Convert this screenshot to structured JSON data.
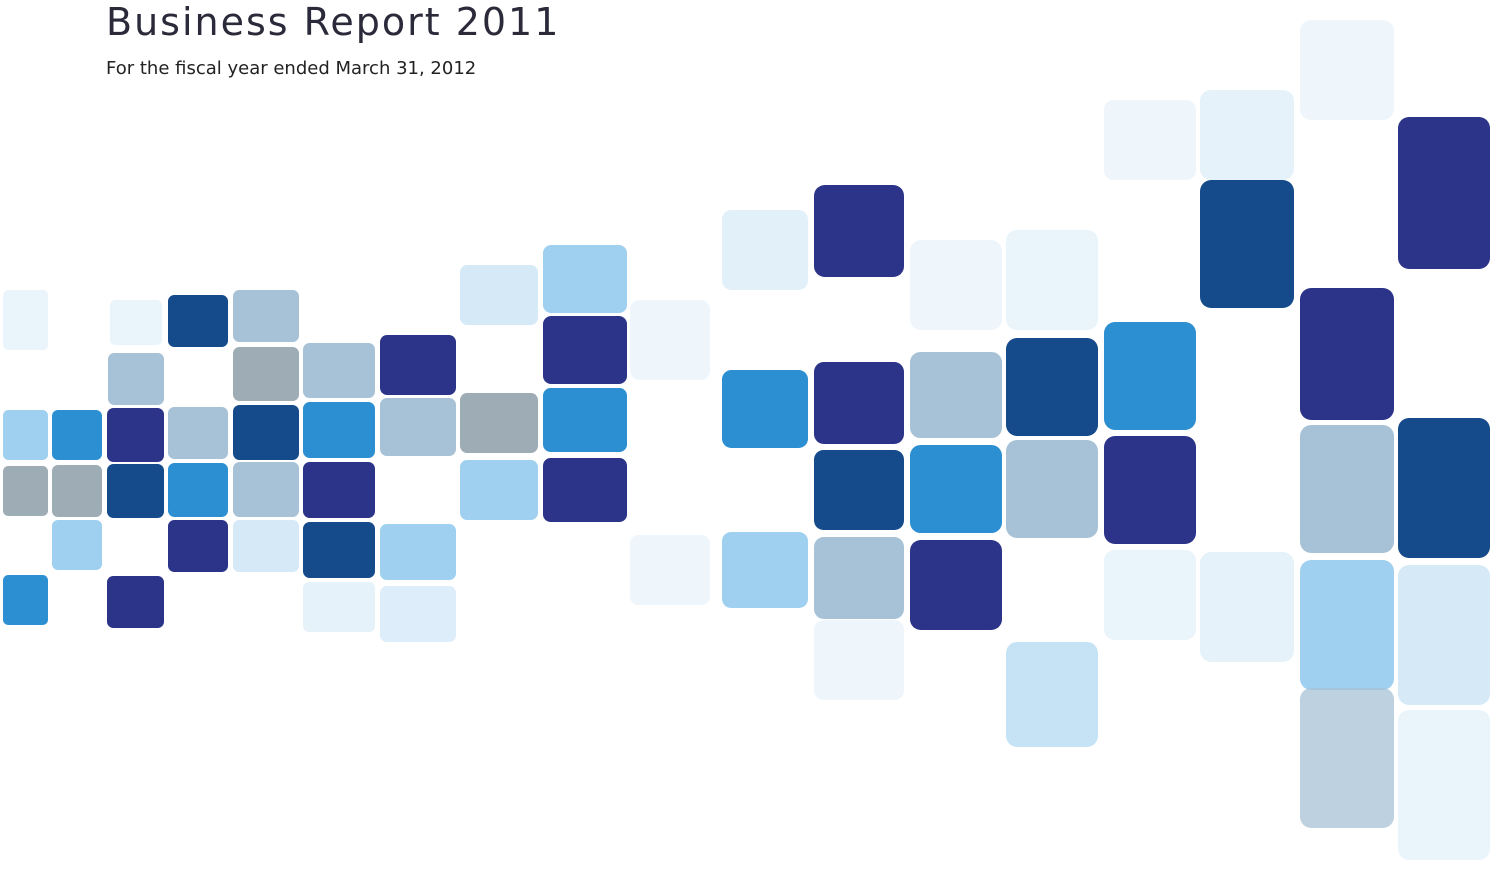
{
  "header": {
    "title": "Business Report 2011",
    "subtitle": "For the fiscal year ended March 31, 2012"
  }
}
